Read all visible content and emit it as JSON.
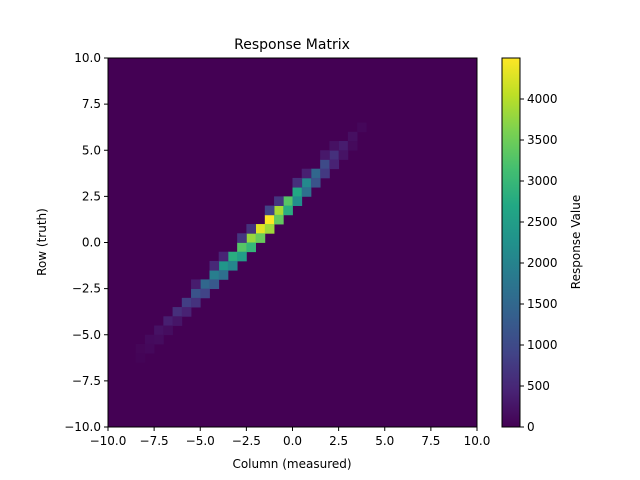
{
  "chart_data": {
    "type": "heatmap",
    "title": "Response Matrix",
    "xlabel": "Column (measured)",
    "ylabel": "Row (truth)",
    "xlim": [
      -10,
      10
    ],
    "ylim": [
      -10,
      10
    ],
    "x_ticks": [
      "−10.0",
      "−7.5",
      "−5.0",
      "−2.5",
      "0.0",
      "2.5",
      "5.0",
      "7.5",
      "10.0"
    ],
    "y_ticks": [
      "−10.0",
      "−7.5",
      "−5.0",
      "−2.5",
      "0.0",
      "2.5",
      "5.0",
      "7.5",
      "10.0"
    ],
    "colormap": "viridis",
    "grid": false,
    "bins": 40,
    "bin_width": 0.5,
    "cells": [
      [
        -7.75,
        -5.25,
        120
      ],
      [
        -7.25,
        -4.75,
        220
      ],
      [
        -6.75,
        -4.25,
        380
      ],
      [
        -6.25,
        -3.75,
        600
      ],
      [
        -5.75,
        -3.25,
        820
      ],
      [
        -5.25,
        -2.75,
        1150
      ],
      [
        -4.75,
        -2.25,
        1500
      ],
      [
        -4.25,
        -1.75,
        1900
      ],
      [
        -3.75,
        -1.25,
        2350
      ],
      [
        -3.25,
        -0.75,
        2800
      ],
      [
        -2.75,
        -0.25,
        3300
      ],
      [
        -2.25,
        0.25,
        3800
      ],
      [
        -1.75,
        0.75,
        4300
      ],
      [
        -1.25,
        1.25,
        4500
      ],
      [
        -0.75,
        1.75,
        3900
      ],
      [
        -0.25,
        2.25,
        3300
      ],
      [
        0.25,
        2.75,
        2700
      ],
      [
        0.75,
        3.25,
        2100
      ],
      [
        1.25,
        3.75,
        1500
      ],
      [
        1.75,
        4.25,
        1000
      ],
      [
        2.25,
        4.75,
        620
      ],
      [
        2.75,
        5.25,
        350
      ],
      [
        3.25,
        5.75,
        180
      ],
      [
        3.75,
        6.25,
        80
      ],
      [
        -6.75,
        -4.75,
        150
      ],
      [
        -6.25,
        -4.25,
        260
      ],
      [
        -5.75,
        -3.75,
        420
      ],
      [
        -5.25,
        -3.25,
        640
      ],
      [
        -4.75,
        -2.75,
        900
      ],
      [
        -4.25,
        -2.25,
        1250
      ],
      [
        -3.75,
        -1.75,
        1650
      ],
      [
        -3.25,
        -1.25,
        2050
      ],
      [
        -2.75,
        -0.75,
        2500
      ],
      [
        -2.25,
        -0.25,
        2950
      ],
      [
        -1.75,
        0.25,
        3450
      ],
      [
        -1.25,
        0.75,
        3850
      ],
      [
        -0.75,
        1.25,
        3400
      ],
      [
        -0.25,
        1.75,
        2800
      ],
      [
        0.25,
        2.25,
        2200
      ],
      [
        0.75,
        2.75,
        1650
      ],
      [
        1.25,
        3.25,
        1150
      ],
      [
        1.75,
        3.75,
        750
      ],
      [
        2.25,
        4.25,
        430
      ],
      [
        2.75,
        4.75,
        230
      ],
      [
        3.25,
        5.25,
        110
      ],
      [
        -8.25,
        -5.75,
        60
      ],
      [
        -8.25,
        -6.25,
        40
      ],
      [
        -7.75,
        -5.75,
        90
      ],
      [
        -7.25,
        -5.25,
        140
      ],
      [
        -4.25,
        -1.25,
        500
      ],
      [
        -2.75,
        0.25,
        700
      ],
      [
        -1.25,
        1.75,
        900
      ],
      [
        0.25,
        3.25,
        600
      ],
      [
        1.75,
        4.75,
        300
      ],
      [
        -5.25,
        -2.25,
        350
      ],
      [
        -3.75,
        -0.75,
        450
      ],
      [
        -2.25,
        0.75,
        650
      ],
      [
        -0.75,
        2.25,
        700
      ],
      [
        0.75,
        3.75,
        400
      ],
      [
        2.25,
        5.25,
        200
      ]
    ],
    "colorbar": {
      "label": "Response Value",
      "min": 0,
      "max": 4500,
      "ticks": [
        "0",
        "500",
        "1000",
        "1500",
        "2000",
        "2500",
        "3000",
        "3500",
        "4000"
      ],
      "tick_values": [
        0,
        500,
        1000,
        1500,
        2000,
        2500,
        3000,
        3500,
        4000
      ]
    }
  }
}
